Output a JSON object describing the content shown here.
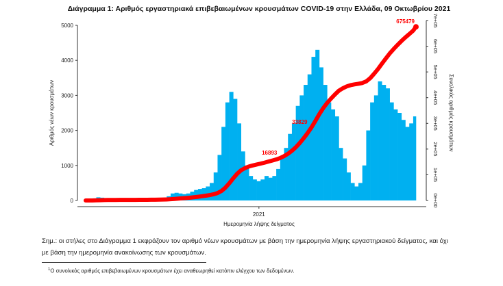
{
  "chart_data": {
    "type": "bar+line",
    "title": "Διάγραμμα 1: Αριθμός εργαστηριακά επιβεβαιωμένων κρουσμάτων COVID-19 στην Ελλάδα, 09 Οκτωβρίου 2021",
    "xlabel": "Ημερομηνία λήψης δείγματος",
    "ylabel_left": "Αριθμός νέων κρουσμάτων",
    "ylabel_right": "Συνολικός αριθμός κρουσμάτων",
    "x_tick_labels": [
      "2021"
    ],
    "y_left_ticks": [
      "0",
      "1000",
      "2000",
      "3000",
      "4000",
      "5000"
    ],
    "y_left_range": [
      0,
      5000
    ],
    "y_right_ticks": [
      "0e+00",
      "1e+05",
      "2e+05",
      "3e+05",
      "4e+05",
      "5e+05",
      "6e+05",
      "7e+05"
    ],
    "y_right_range": [
      0,
      700000
    ],
    "x_range": [
      "2020-02-26",
      "2021-10-09"
    ],
    "bar_series": {
      "description": "weekly approximate daily new cases",
      "week_start": "2020-02-24",
      "values": [
        2,
        20,
        60,
        90,
        80,
        50,
        30,
        20,
        15,
        10,
        10,
        8,
        10,
        10,
        15,
        20,
        25,
        30,
        40,
        50,
        80,
        120,
        200,
        220,
        200,
        180,
        200,
        250,
        300,
        330,
        350,
        400,
        500,
        800,
        1300,
        2100,
        2800,
        3100,
        2900,
        2200,
        1400,
        1000,
        700,
        600,
        550,
        600,
        700,
        650,
        700,
        900,
        1200,
        1500,
        1900,
        2200,
        2700,
        3000,
        3300,
        3600,
        4100,
        4300,
        3800,
        3300,
        2800,
        2600,
        2400,
        1500,
        1200,
        800,
        500,
        400,
        500,
        1000,
        2000,
        2800,
        3000,
        3400,
        3300,
        3200,
        2800,
        2600,
        2500,
        2300,
        2100,
        2200,
        2400
      ],
      "color": "#00b0f0"
    },
    "line_series": {
      "description": "cumulative cases",
      "color": "#ff0000",
      "point_labels": [
        {
          "label": "16893",
          "date": "2021-02-05"
        },
        {
          "label": "33829",
          "date": "2021-03-31"
        },
        {
          "label": "675479",
          "date": "2021-10-09"
        }
      ],
      "final_value": 675479
    },
    "grid": false,
    "legend": "none"
  },
  "notes": {
    "line1": "Σημ.: οι στήλες στο Διάγραμμα 1 εκφράζουν τον αριθμό νέων κρουσμάτων με βάση την ημερομηνία λήψης εργαστηριακού δείγματος, και όχι",
    "line2": "με βάση την ημερομηνία ανακοίνωσης των κρουσμάτων.",
    "footnote_mark": "1",
    "footnote": "Ο συνολικός αριθμός επιβεβαιωμένων κρουσμάτων έχει αναθεωρηθεί κατόπιν ελέγχου των δεδομένων."
  }
}
